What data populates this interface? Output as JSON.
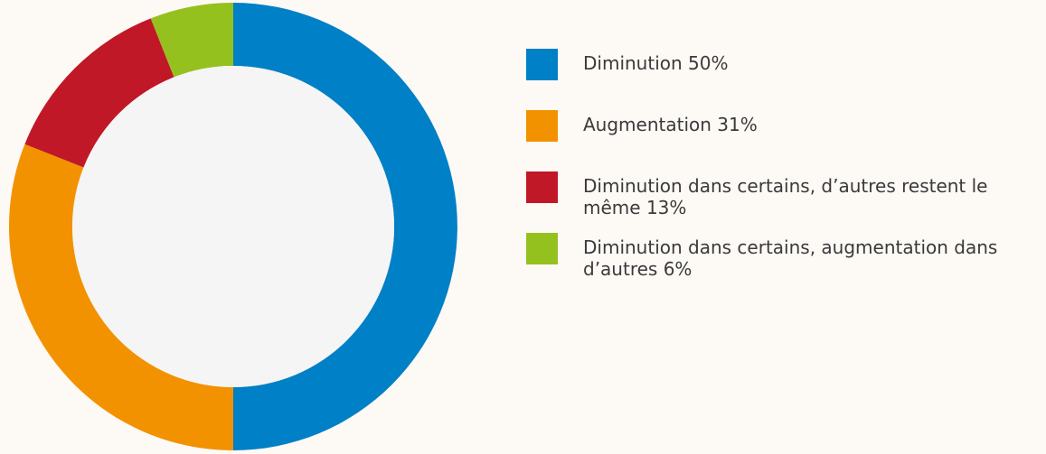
{
  "chart_data": {
    "type": "donut",
    "categories": [
      "Diminution",
      "Augmentation",
      "Diminution dans certains, d’autres restent le même",
      "Diminution dans certains, augmentation dans d’autres"
    ],
    "values": [
      50,
      31,
      13,
      6
    ],
    "value_labels": [
      "50%",
      "31%",
      "13%",
      "6%"
    ],
    "colors": [
      "#0080c6",
      "#f39200",
      "#c01826",
      "#95c11f"
    ],
    "legend": "right"
  }
}
